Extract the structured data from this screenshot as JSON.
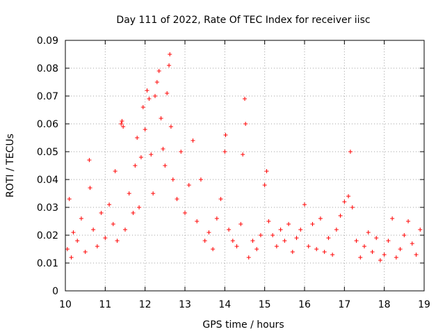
{
  "chart_data": {
    "type": "scatter",
    "title": "Day 111 of 2022, Rate Of TEC Index for receiver iisc",
    "xlabel": "GPS time / hours",
    "ylabel": "ROTI / TECUs",
    "xlim": [
      10,
      19
    ],
    "ylim": [
      0,
      0.09
    ],
    "grid": true,
    "marker": "+",
    "xticks": [
      "10",
      "11",
      "12",
      "13",
      "14",
      "15",
      "16",
      "17",
      "18",
      "19"
    ],
    "yticks": [
      "0",
      "0.01",
      "0.02",
      "0.03",
      "0.04",
      "0.05",
      "0.06",
      "0.07",
      "0.08",
      "0.09"
    ],
    "series": [
      {
        "name": "ROTI",
        "color": "#ff0000",
        "x": [
          10.05,
          10.1,
          10.15,
          10.2,
          10.3,
          10.4,
          10.5,
          10.6,
          10.62,
          10.7,
          10.8,
          10.9,
          11.0,
          11.1,
          11.2,
          11.25,
          11.3,
          11.4,
          11.42,
          11.45,
          11.5,
          11.6,
          11.7,
          11.75,
          11.8,
          11.85,
          11.9,
          11.95,
          12.0,
          12.05,
          12.1,
          12.15,
          12.2,
          12.25,
          12.3,
          12.35,
          12.4,
          12.45,
          12.5,
          12.55,
          12.6,
          12.62,
          12.65,
          12.7,
          12.8,
          12.9,
          13.0,
          13.1,
          13.2,
          13.3,
          13.4,
          13.5,
          13.6,
          13.7,
          13.8,
          13.9,
          14.0,
          14.02,
          14.1,
          14.2,
          14.3,
          14.4,
          14.45,
          14.5,
          14.52,
          14.6,
          14.7,
          14.8,
          14.9,
          15.0,
          15.05,
          15.1,
          15.2,
          15.3,
          15.4,
          15.5,
          15.6,
          15.7,
          15.8,
          15.9,
          16.0,
          16.1,
          16.2,
          16.3,
          16.4,
          16.5,
          16.6,
          16.7,
          16.8,
          16.9,
          17.0,
          17.1,
          17.15,
          17.2,
          17.3,
          17.4,
          17.5,
          17.6,
          17.7,
          17.8,
          17.9,
          18.0,
          18.1,
          18.2,
          18.3,
          18.4,
          18.5,
          18.6,
          18.7,
          18.8,
          18.9
        ],
        "y": [
          0.015,
          0.033,
          0.012,
          0.021,
          0.018,
          0.026,
          0.014,
          0.047,
          0.037,
          0.022,
          0.016,
          0.028,
          0.019,
          0.031,
          0.024,
          0.043,
          0.018,
          0.06,
          0.061,
          0.059,
          0.022,
          0.035,
          0.028,
          0.045,
          0.055,
          0.03,
          0.048,
          0.066,
          0.058,
          0.072,
          0.069,
          0.049,
          0.035,
          0.07,
          0.075,
          0.079,
          0.062,
          0.051,
          0.045,
          0.071,
          0.081,
          0.085,
          0.059,
          0.04,
          0.033,
          0.05,
          0.028,
          0.038,
          0.054,
          0.025,
          0.04,
          0.018,
          0.021,
          0.015,
          0.026,
          0.033,
          0.05,
          0.056,
          0.022,
          0.018,
          0.016,
          0.024,
          0.049,
          0.069,
          0.06,
          0.012,
          0.018,
          0.015,
          0.02,
          0.038,
          0.043,
          0.025,
          0.02,
          0.016,
          0.022,
          0.018,
          0.024,
          0.014,
          0.019,
          0.022,
          0.031,
          0.016,
          0.024,
          0.015,
          0.026,
          0.014,
          0.019,
          0.013,
          0.022,
          0.027,
          0.032,
          0.034,
          0.05,
          0.03,
          0.018,
          0.012,
          0.016,
          0.021,
          0.014,
          0.019,
          0.011,
          0.013,
          0.018,
          0.026,
          0.012,
          0.015,
          0.02,
          0.025,
          0.017,
          0.013,
          0.022
        ]
      }
    ]
  }
}
